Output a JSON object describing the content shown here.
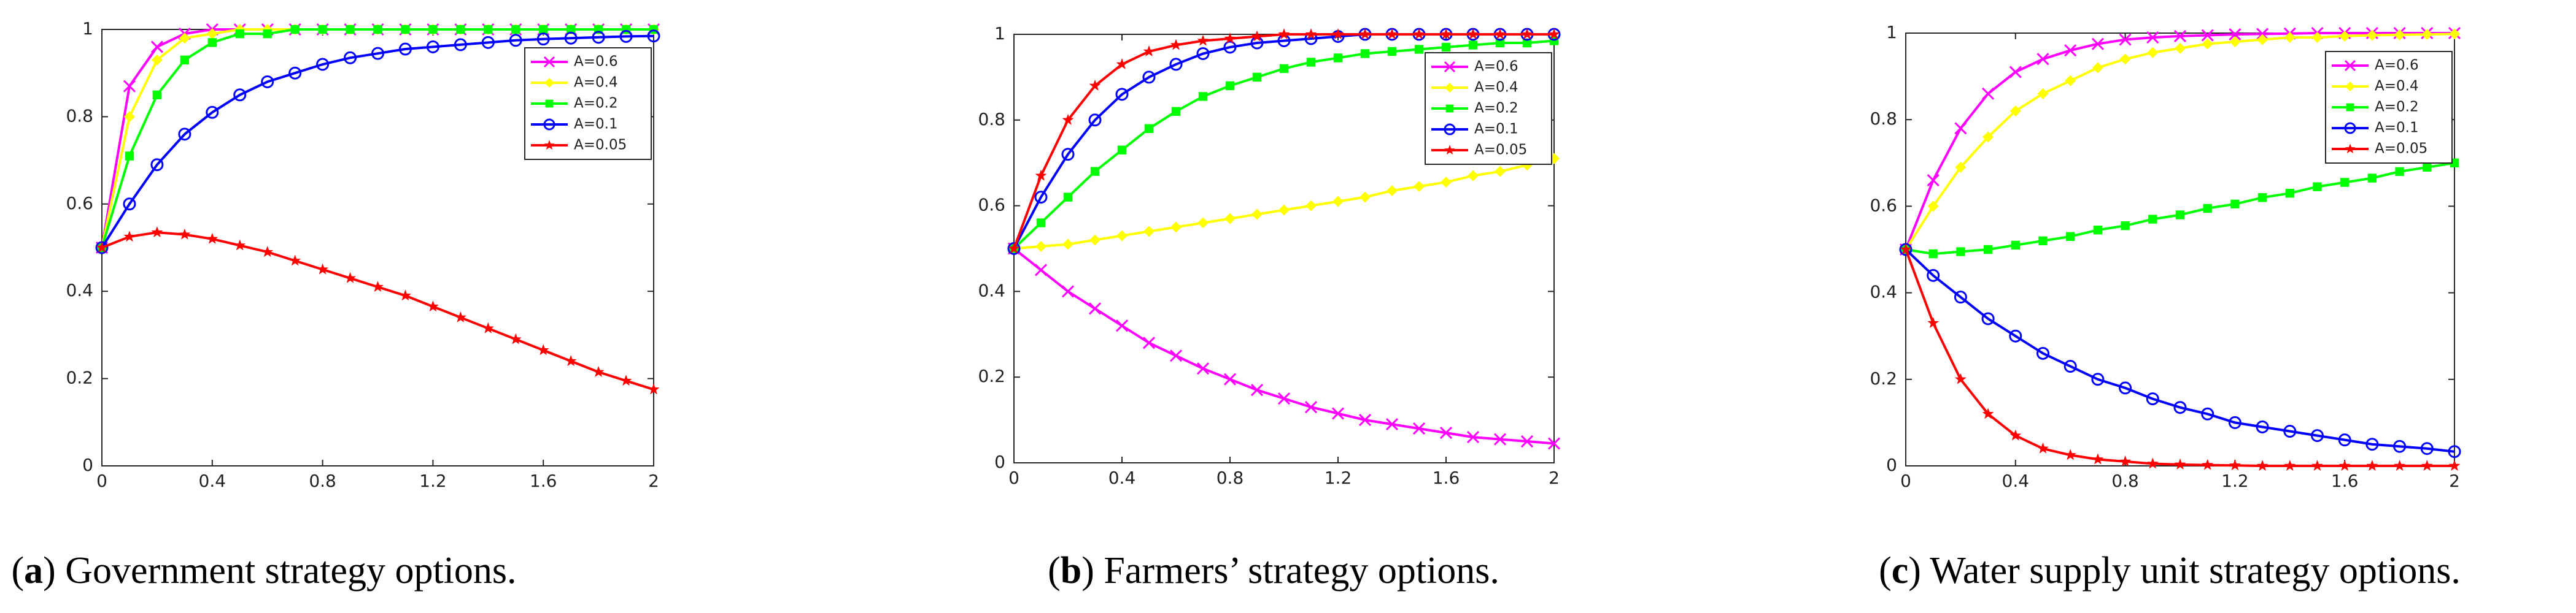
{
  "chart_data": [
    {
      "type": "line",
      "caption": [
        "(",
        "a",
        ") Government strategy options."
      ],
      "x": [
        0,
        0.1,
        0.2,
        0.3,
        0.4,
        0.5,
        0.6,
        0.7,
        0.8,
        0.9,
        1,
        1.1,
        1.2,
        1.3,
        1.4,
        1.5,
        1.6,
        1.7,
        1.8,
        1.9,
        2
      ],
      "xlim": [
        0,
        2
      ],
      "xticks": [
        0,
        0.4,
        0.8,
        1.2,
        1.6,
        2
      ],
      "ylim": [
        0,
        1
      ],
      "yticks": [
        0,
        0.2,
        0.4,
        0.6,
        0.8,
        1
      ],
      "legend": "upper right",
      "series": [
        {
          "name": "A=0.6",
          "color": "#ff00ff",
          "marker": "x",
          "values": [
            0.5,
            0.87,
            0.96,
            0.99,
            1,
            1,
            1,
            1,
            1,
            1,
            1,
            1,
            1,
            1,
            1,
            1,
            1,
            1,
            1,
            1,
            1
          ]
        },
        {
          "name": "A=0.4",
          "color": "#ffff00",
          "marker": "diamond",
          "values": [
            0.5,
            0.8,
            0.93,
            0.98,
            0.99,
            1,
            1,
            1,
            1,
            1,
            1,
            1,
            1,
            1,
            1,
            1,
            1,
            1,
            1,
            1,
            1
          ]
        },
        {
          "name": "A=0.2",
          "color": "#00ff00",
          "marker": "square",
          "values": [
            0.5,
            0.71,
            0.85,
            0.93,
            0.97,
            0.99,
            0.99,
            1,
            1,
            1,
            1,
            1,
            1,
            1,
            1,
            1,
            1,
            1,
            1,
            1,
            1
          ]
        },
        {
          "name": "A=0.1",
          "color": "#0000ff",
          "marker": "circle",
          "values": [
            0.5,
            0.6,
            0.69,
            0.76,
            0.81,
            0.85,
            0.88,
            0.9,
            0.92,
            0.935,
            0.945,
            0.955,
            0.96,
            0.965,
            0.97,
            0.975,
            0.978,
            0.98,
            0.982,
            0.984,
            0.985
          ]
        },
        {
          "name": "A=0.05",
          "color": "#ff0000",
          "marker": "star",
          "values": [
            0.5,
            0.525,
            0.535,
            0.53,
            0.52,
            0.505,
            0.49,
            0.47,
            0.45,
            0.43,
            0.41,
            0.39,
            0.365,
            0.34,
            0.315,
            0.29,
            0.265,
            0.24,
            0.215,
            0.195,
            0.175
          ]
        }
      ]
    },
    {
      "type": "line",
      "caption": [
        "(",
        "b",
        ") Farmers’ strategy options."
      ],
      "x": [
        0,
        0.1,
        0.2,
        0.3,
        0.4,
        0.5,
        0.6,
        0.7,
        0.8,
        0.9,
        1,
        1.1,
        1.2,
        1.3,
        1.4,
        1.5,
        1.6,
        1.7,
        1.8,
        1.9,
        2
      ],
      "xlim": [
        0,
        2
      ],
      "xticks": [
        0,
        0.4,
        0.8,
        1.2,
        1.6,
        2
      ],
      "ylim": [
        0,
        1
      ],
      "yticks": [
        0,
        0.2,
        0.4,
        0.6,
        0.8,
        1
      ],
      "legend": "upper right",
      "series": [
        {
          "name": "A=0.6",
          "color": "#ff00ff",
          "marker": "x",
          "values": [
            0.5,
            0.45,
            0.4,
            0.36,
            0.32,
            0.28,
            0.25,
            0.22,
            0.195,
            0.17,
            0.15,
            0.13,
            0.115,
            0.1,
            0.09,
            0.08,
            0.07,
            0.06,
            0.055,
            0.05,
            0.045
          ]
        },
        {
          "name": "A=0.4",
          "color": "#ffff00",
          "marker": "diamond",
          "values": [
            0.5,
            0.505,
            0.51,
            0.52,
            0.53,
            0.54,
            0.55,
            0.56,
            0.57,
            0.58,
            0.59,
            0.6,
            0.61,
            0.62,
            0.635,
            0.645,
            0.655,
            0.67,
            0.68,
            0.695,
            0.71
          ]
        },
        {
          "name": "A=0.2",
          "color": "#00ff00",
          "marker": "square",
          "values": [
            0.5,
            0.56,
            0.62,
            0.68,
            0.73,
            0.78,
            0.82,
            0.855,
            0.88,
            0.9,
            0.92,
            0.935,
            0.945,
            0.955,
            0.96,
            0.965,
            0.97,
            0.975,
            0.98,
            0.98,
            0.985
          ]
        },
        {
          "name": "A=0.1",
          "color": "#0000ff",
          "marker": "circle",
          "values": [
            0.5,
            0.62,
            0.72,
            0.8,
            0.86,
            0.9,
            0.93,
            0.955,
            0.97,
            0.98,
            0.985,
            0.99,
            0.995,
            1,
            1,
            1,
            1,
            1,
            1,
            1,
            1
          ]
        },
        {
          "name": "A=0.05",
          "color": "#ff0000",
          "marker": "star",
          "values": [
            0.5,
            0.67,
            0.8,
            0.88,
            0.93,
            0.96,
            0.975,
            0.985,
            0.99,
            0.995,
            1,
            1,
            1,
            1,
            1,
            1,
            1,
            1,
            1,
            1,
            1
          ]
        }
      ]
    },
    {
      "type": "line",
      "caption": [
        "(",
        "c",
        ") Water supply unit strategy options."
      ],
      "x": [
        0,
        0.1,
        0.2,
        0.3,
        0.4,
        0.5,
        0.6,
        0.7,
        0.8,
        0.9,
        1,
        1.1,
        1.2,
        1.3,
        1.4,
        1.5,
        1.6,
        1.7,
        1.8,
        1.9,
        2
      ],
      "xlim": [
        0,
        2
      ],
      "xticks": [
        0,
        0.4,
        0.8,
        1.2,
        1.6,
        2
      ],
      "ylim": [
        0,
        1
      ],
      "yticks": [
        0,
        0.2,
        0.4,
        0.6,
        0.8,
        1
      ],
      "legend": "upper right",
      "series": [
        {
          "name": "A=0.6",
          "color": "#ff00ff",
          "marker": "x",
          "values": [
            0.5,
            0.66,
            0.78,
            0.86,
            0.91,
            0.94,
            0.96,
            0.975,
            0.985,
            0.99,
            0.993,
            0.995,
            0.997,
            0.998,
            0.999,
            1,
            1,
            1,
            1,
            1,
            1
          ]
        },
        {
          "name": "A=0.4",
          "color": "#ffff00",
          "marker": "diamond",
          "values": [
            0.5,
            0.6,
            0.69,
            0.76,
            0.82,
            0.86,
            0.89,
            0.92,
            0.94,
            0.955,
            0.965,
            0.975,
            0.98,
            0.985,
            0.99,
            0.99,
            0.993,
            0.995,
            0.996,
            0.997,
            0.998
          ]
        },
        {
          "name": "A=0.2",
          "color": "#00ff00",
          "marker": "square",
          "values": [
            0.5,
            0.49,
            0.495,
            0.5,
            0.51,
            0.52,
            0.53,
            0.545,
            0.555,
            0.57,
            0.58,
            0.595,
            0.605,
            0.62,
            0.63,
            0.645,
            0.655,
            0.665,
            0.68,
            0.69,
            0.7
          ]
        },
        {
          "name": "A=0.1",
          "color": "#0000ff",
          "marker": "circle",
          "values": [
            0.5,
            0.44,
            0.39,
            0.34,
            0.3,
            0.26,
            0.23,
            0.2,
            0.18,
            0.155,
            0.135,
            0.12,
            0.1,
            0.09,
            0.08,
            0.07,
            0.06,
            0.05,
            0.045,
            0.04,
            0.033
          ]
        },
        {
          "name": "A=0.05",
          "color": "#ff0000",
          "marker": "star",
          "values": [
            0.5,
            0.33,
            0.2,
            0.12,
            0.07,
            0.04,
            0.025,
            0.015,
            0.01,
            0.005,
            0.003,
            0.002,
            0.001,
            0,
            0,
            0,
            0,
            0,
            0,
            0,
            0
          ]
        }
      ]
    }
  ]
}
